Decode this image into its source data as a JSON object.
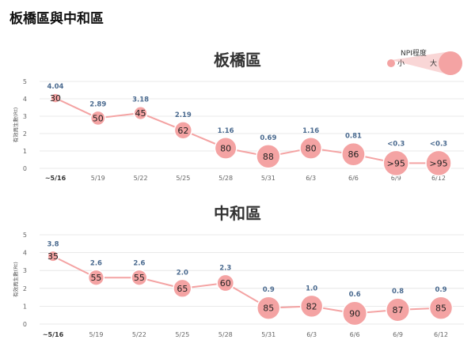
{
  "page_title": "板橋區與中和區",
  "legend": {
    "title": "NPI程度",
    "small": "小",
    "large": "大",
    "color": "#f4a3a3"
  },
  "colors": {
    "marker": "#f4a3a3",
    "line": "#f4a3a3",
    "grid": "#e2e2e2",
    "value_label": "#4a6a8f"
  },
  "chart_data": [
    {
      "type": "scatter",
      "title": "板橋區",
      "ylabel": "有效再生數(Rt)",
      "ylim": [
        0,
        5
      ],
      "yticks": [
        "0",
        "1",
        "2",
        "3",
        "4",
        "5"
      ],
      "categories": [
        "~5/16",
        "5/19",
        "5/22",
        "5/25",
        "5/28",
        "5/31",
        "6/3",
        "6/6",
        "6/9",
        "6/12"
      ],
      "values": [
        4.04,
        2.89,
        3.18,
        2.19,
        1.16,
        0.69,
        1.16,
        0.81,
        0.3,
        0.3
      ],
      "value_labels": [
        "4.04",
        "2.89",
        "3.18",
        "2.19",
        "1.16",
        "0.69",
        "1.16",
        "0.81",
        "<0.3",
        "<0.3"
      ],
      "npi_labels": [
        "30",
        "50",
        "45",
        "62",
        "80",
        "88",
        "80",
        "86",
        ">95",
        ">95"
      ],
      "npi_values": [
        30,
        50,
        45,
        62,
        80,
        88,
        80,
        86,
        95,
        95
      ]
    },
    {
      "type": "scatter",
      "title": "中和區",
      "ylabel": "有效再生數(Rt)",
      "ylim": [
        0,
        5
      ],
      "yticks": [
        "0",
        "1",
        "2",
        "3",
        "4",
        "5"
      ],
      "categories": [
        "~5/16",
        "5/19",
        "5/22",
        "5/25",
        "5/28",
        "5/31",
        "6/3",
        "6/6",
        "6/9",
        "6/12"
      ],
      "values": [
        3.8,
        2.6,
        2.6,
        2.0,
        2.3,
        0.9,
        1.0,
        0.6,
        0.8,
        0.9
      ],
      "value_labels": [
        "3.8",
        "2.6",
        "2.6",
        "2.0",
        "2.3",
        "0.9",
        "1.0",
        "0.6",
        "0.8",
        "0.9"
      ],
      "npi_labels": [
        "35",
        "55",
        "55",
        "65",
        "60",
        "85",
        "82",
        "90",
        "87",
        "85"
      ],
      "npi_values": [
        35,
        55,
        55,
        65,
        60,
        85,
        82,
        90,
        87,
        85
      ]
    }
  ]
}
